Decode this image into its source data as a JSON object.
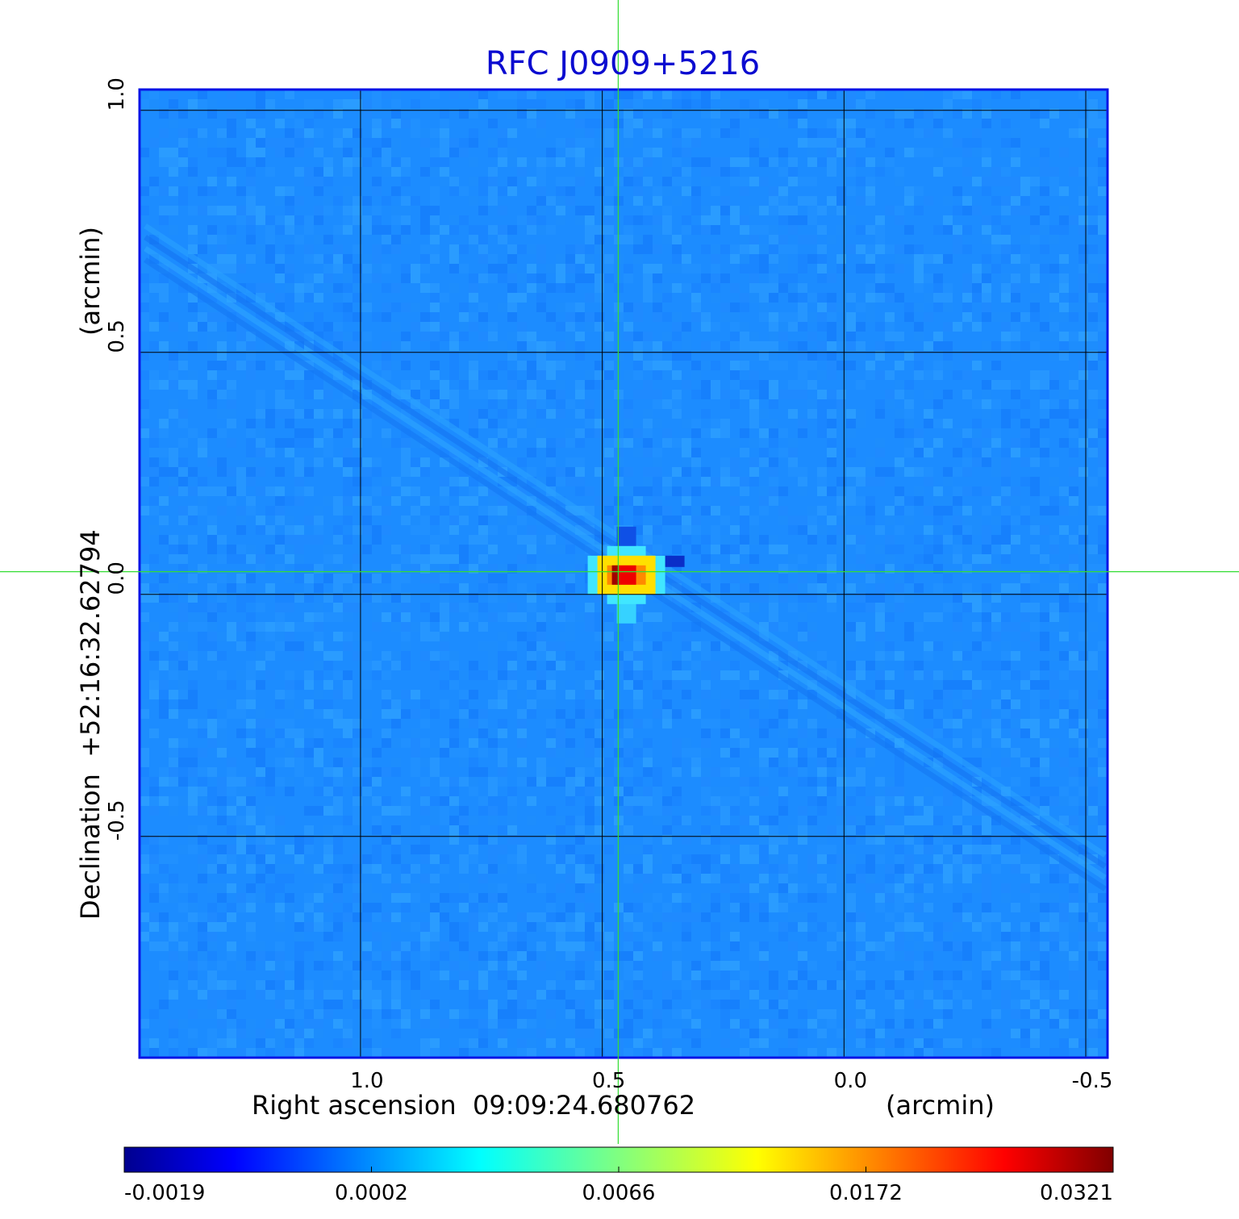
{
  "chart_data": {
    "type": "heatmap",
    "title": "RFC J0909+5216",
    "xlabel": "Right ascension  09:09:24.680762",
    "xunit": "(arcmin)",
    "ylabel": "Declination  +52:16:32.62794",
    "yunit": "(arcmin)",
    "x_ticks": [
      1.0,
      0.5,
      0.0,
      -0.5
    ],
    "x_tick_labels": [
      "1.0",
      "0.5",
      "0.0",
      "-0.5"
    ],
    "y_ticks": [
      1.0,
      0.5,
      0.0,
      -0.5
    ],
    "y_tick_labels": [
      "1.0",
      "0.5",
      "0.0",
      "-0.5"
    ],
    "xlim": [
      1.457,
      -0.545
    ],
    "ylim": [
      -0.957,
      1.043
    ],
    "grid": true,
    "crosshair": {
      "x": 0.467,
      "y": 0.047
    },
    "source": {
      "x": 0.45,
      "y": 0.04,
      "peak": 0.0321
    },
    "colorbar": {
      "tick_labels": [
        "-0.0019",
        "0.0002",
        "0.0066",
        "0.0172",
        "0.0321"
      ],
      "colormap": "jet"
    },
    "colors": {
      "title": "#0b0bd0",
      "frame": "#0a14e6",
      "background": "#1c8cff",
      "crosshair": "#33dd33"
    }
  }
}
